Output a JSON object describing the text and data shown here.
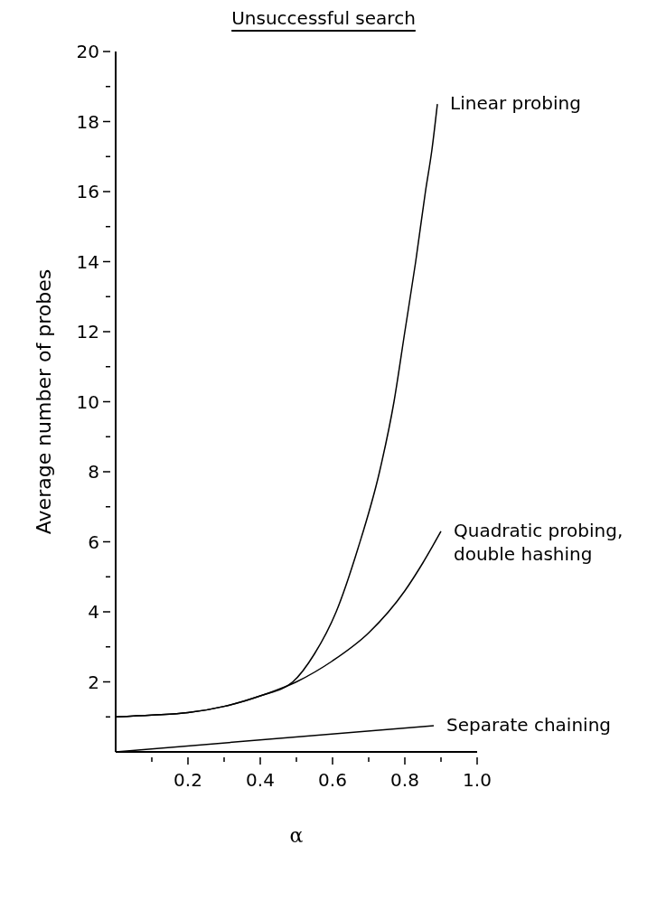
{
  "chart_data": {
    "type": "line",
    "title": "Unsuccessful search",
    "xlabel": "α",
    "ylabel": "Average number of probes",
    "series": [
      {
        "name": "Linear probing",
        "color": "#000000",
        "x": [
          0,
          0.1,
          0.2,
          0.3,
          0.4,
          0.49,
          0.55,
          0.61,
          0.67,
          0.73,
          0.77,
          0.8,
          0.83,
          0.857,
          0.875,
          0.89
        ],
        "values": [
          1.0,
          1.05,
          1.12,
          1.3,
          1.6,
          2.0,
          2.8,
          4.0,
          5.8,
          8.0,
          10.0,
          12.0,
          14.0,
          16.0,
          17.2,
          18.5
        ]
      },
      {
        "name": "Quadratic probing, double hashing",
        "color": "#000000",
        "x": [
          0,
          0.1,
          0.2,
          0.3,
          0.4,
          0.5,
          0.6,
          0.7,
          0.8,
          0.85,
          0.9
        ],
        "values": [
          1.0,
          1.05,
          1.12,
          1.3,
          1.6,
          2.0,
          2.6,
          3.4,
          4.6,
          5.4,
          6.3
        ]
      },
      {
        "name": "Separate chaining",
        "color": "#000000",
        "x": [
          0,
          0.88
        ],
        "values": [
          0,
          0.75
        ]
      }
    ],
    "xlim": [
      0,
      1.0
    ],
    "xticks": [
      {
        "value": 0.1,
        "label": null
      },
      0.2,
      {
        "value": 0.3,
        "label": null
      },
      0.4,
      {
        "value": 0.5,
        "label": null
      },
      0.6,
      {
        "value": 0.7,
        "label": null
      },
      0.8,
      {
        "value": 0.9,
        "label": null
      },
      {
        "value": 1.0,
        "label": "1.0"
      }
    ],
    "ylim": [
      0,
      20
    ],
    "yticks": [
      {
        "value": 1,
        "label": null
      },
      2,
      {
        "value": 3,
        "label": null
      },
      4,
      {
        "value": 5,
        "label": null
      },
      6,
      {
        "value": 7,
        "label": null
      },
      8,
      {
        "value": 9,
        "label": null
      },
      10,
      {
        "value": 11,
        "label": null
      },
      12,
      {
        "value": 13,
        "label": null
      },
      14,
      {
        "value": 15,
        "label": null
      },
      16,
      {
        "value": 17,
        "label": null
      },
      18,
      {
        "value": 19,
        "label": null
      },
      20
    ],
    "grid": false,
    "legend": false,
    "marker": "none",
    "line_style": "solid"
  }
}
